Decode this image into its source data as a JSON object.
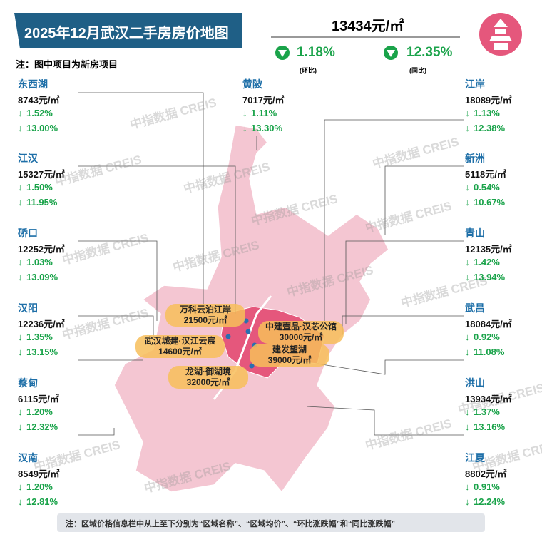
{
  "header": {
    "title": "2025年12月武汉二手房房价地图",
    "note": "注：图中项目为新房项目",
    "price": "13434元/㎡",
    "mom": "1.18%",
    "mom_label": "(环比)",
    "yoy": "12.35%",
    "yoy_label": "(同比)"
  },
  "districts": [
    {
      "name": "东西湖",
      "price": "8743元/㎡",
      "mom": "1.52%",
      "yoy": "13.00%"
    },
    {
      "name": "江汉",
      "price": "15327元/㎡",
      "mom": "1.50%",
      "yoy": "11.95%"
    },
    {
      "name": "硚口",
      "price": "12252元/㎡",
      "mom": "1.03%",
      "yoy": "13.09%"
    },
    {
      "name": "汉阳",
      "price": "12236元/㎡",
      "mom": "1.35%",
      "yoy": "13.15%"
    },
    {
      "name": "蔡甸",
      "price": "6115元/㎡",
      "mom": "1.20%",
      "yoy": "12.32%"
    },
    {
      "name": "汉南",
      "price": "8549元/㎡",
      "mom": "1.20%",
      "yoy": "12.81%"
    },
    {
      "name": "黄陂",
      "price": "7017元/㎡",
      "mom": "1.11%",
      "yoy": "13.30%"
    },
    {
      "name": "江岸",
      "price": "18089元/㎡",
      "mom": "1.13%",
      "yoy": "12.38%"
    },
    {
      "name": "新洲",
      "price": "5118元/㎡",
      "mom": "0.54%",
      "yoy": "10.67%"
    },
    {
      "name": "青山",
      "price": "12135元/㎡",
      "mom": "1.42%",
      "yoy": "13.94%"
    },
    {
      "name": "武昌",
      "price": "18084元/㎡",
      "mom": "0.92%",
      "yoy": "11.08%"
    },
    {
      "name": "洪山",
      "price": "13934元/㎡",
      "mom": "1.37%",
      "yoy": "13.16%"
    },
    {
      "name": "江夏",
      "price": "8802元/㎡",
      "mom": "0.91%",
      "yoy": "12.24%"
    }
  ],
  "projects": [
    {
      "name": "万科云泊江岸",
      "price": "21500元/㎡"
    },
    {
      "name": "武汉城建·汉江云宸",
      "price": "14600元/㎡"
    },
    {
      "name": "中建壹品·汉芯公馆",
      "price": "30000元/㎡"
    },
    {
      "name": "建发望湖",
      "price": "39000元/㎡"
    },
    {
      "name": "龙湖·御湖境",
      "price": "32000元/㎡"
    }
  ],
  "watermark": "中指数据 CREIS",
  "footer": "注：区域价格信息栏中从上至下分别为“区域名称”、“区域均价”、“环比涨跌幅”和“同比涨跌幅”"
}
